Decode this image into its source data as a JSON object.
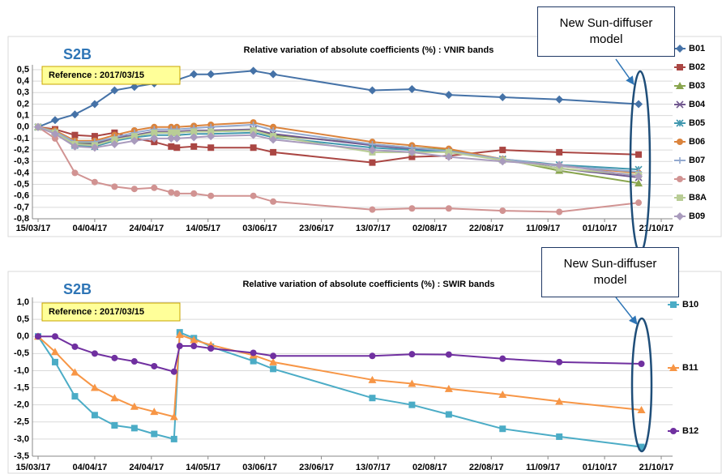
{
  "chart_data": [
    {
      "type": "line",
      "title": "Relative variation of absolute coefficients (%) : VNIR bands",
      "label": "S2B",
      "reference": "Reference : 2017/03/15",
      "callout": "New Sun-diffuser model",
      "legend": "right",
      "grid": true,
      "x": [
        "2017-03-15",
        "2017-03-21",
        "2017-03-28",
        "2017-04-04",
        "2017-04-11",
        "2017-04-18",
        "2017-04-25",
        "2017-05-01",
        "2017-05-03",
        "2017-05-09",
        "2017-05-15",
        "2017-05-30",
        "2017-06-06",
        "2017-07-11",
        "2017-07-25",
        "2017-08-07",
        "2017-08-26",
        "2017-09-15",
        "2017-10-13"
      ],
      "xlim": [
        "2017-03-13",
        "2017-10-25"
      ],
      "xticks": [
        {
          "value": "2017-03-15",
          "label": "15/03/17"
        },
        {
          "value": "2017-04-04",
          "label": "04/04/17"
        },
        {
          "value": "2017-04-24",
          "label": "24/04/17"
        },
        {
          "value": "2017-05-14",
          "label": "14/05/17"
        },
        {
          "value": "2017-06-03",
          "label": "03/06/17"
        },
        {
          "value": "2017-06-23",
          "label": "23/06/17"
        },
        {
          "value": "2017-07-13",
          "label": "13/07/17"
        },
        {
          "value": "2017-08-02",
          "label": "02/08/17"
        },
        {
          "value": "2017-08-22",
          "label": "22/08/17"
        },
        {
          "value": "2017-09-11",
          "label": "11/09/17"
        },
        {
          "value": "2017-10-01",
          "label": "01/10/17"
        },
        {
          "value": "2017-10-21",
          "label": "21/10/17"
        }
      ],
      "ylim": [
        -0.8,
        0.5
      ],
      "yticks": [
        {
          "value": 0.5,
          "label": "0,5"
        },
        {
          "value": 0.4,
          "label": "0,4"
        },
        {
          "value": 0.3,
          "label": "0,3"
        },
        {
          "value": 0.2,
          "label": "0,2"
        },
        {
          "value": 0.1,
          "label": "0,1"
        },
        {
          "value": 0,
          "label": "0,0"
        },
        {
          "value": -0.1,
          "label": "-0,1"
        },
        {
          "value": -0.2,
          "label": "-0,2"
        },
        {
          "value": -0.3,
          "label": "-0,3"
        },
        {
          "value": -0.4,
          "label": "-0,4"
        },
        {
          "value": -0.5,
          "label": "-0,5"
        },
        {
          "value": -0.6,
          "label": "-0,6"
        },
        {
          "value": -0.7,
          "label": "-0,7"
        },
        {
          "value": -0.8,
          "label": "-0,8"
        }
      ],
      "series": [
        {
          "name": "B01",
          "color": "#4572a7",
          "marker": "diamond",
          "values": [
            0,
            0.06,
            0.11,
            0.2,
            0.32,
            0.35,
            0.38,
            0.42,
            0.41,
            0.46,
            0.46,
            0.49,
            0.46,
            0.32,
            0.33,
            0.28,
            0.26,
            0.24,
            0.2
          ]
        },
        {
          "name": "B02",
          "color": "#aa4643",
          "marker": "square",
          "values": [
            0,
            -0.02,
            -0.07,
            -0.08,
            -0.05,
            -0.1,
            -0.13,
            -0.17,
            -0.18,
            -0.17,
            -0.18,
            -0.18,
            -0.22,
            -0.31,
            -0.26,
            -0.25,
            -0.2,
            -0.22,
            -0.24
          ]
        },
        {
          "name": "B03",
          "color": "#89a54e",
          "marker": "triangle",
          "values": [
            0,
            -0.05,
            -0.14,
            -0.14,
            -0.1,
            -0.07,
            -0.05,
            -0.05,
            -0.05,
            -0.04,
            -0.04,
            -0.03,
            -0.07,
            -0.15,
            -0.18,
            -0.2,
            -0.28,
            -0.38,
            -0.49
          ]
        },
        {
          "name": "B04",
          "color": "#71588f",
          "marker": "x",
          "values": [
            0,
            -0.05,
            -0.15,
            -0.15,
            -0.1,
            -0.07,
            -0.04,
            -0.04,
            -0.04,
            -0.03,
            -0.03,
            -0.02,
            -0.06,
            -0.16,
            -0.19,
            -0.21,
            -0.28,
            -0.36,
            -0.44
          ]
        },
        {
          "name": "B05",
          "color": "#4198af",
          "marker": "star",
          "values": [
            0,
            -0.05,
            -0.16,
            -0.17,
            -0.12,
            -0.09,
            -0.07,
            -0.07,
            -0.07,
            -0.06,
            -0.06,
            -0.05,
            -0.09,
            -0.18,
            -0.2,
            -0.22,
            -0.28,
            -0.33,
            -0.37
          ]
        },
        {
          "name": "B06",
          "color": "#db843d",
          "marker": "circle",
          "values": [
            0,
            -0.03,
            -0.12,
            -0.12,
            -0.07,
            -0.03,
            0,
            0,
            0,
            0.01,
            0.02,
            0.04,
            0,
            -0.13,
            -0.16,
            -0.19,
            -0.28,
            -0.34,
            -0.4
          ]
        },
        {
          "name": "B07",
          "color": "#93a9cf",
          "marker": "plus",
          "values": [
            0,
            -0.04,
            -0.13,
            -0.13,
            -0.09,
            -0.05,
            -0.02,
            -0.02,
            -0.02,
            -0.01,
            0,
            0.02,
            -0.03,
            -0.15,
            -0.18,
            -0.21,
            -0.28,
            -0.34,
            -0.39
          ]
        },
        {
          "name": "B08",
          "color": "#d19392",
          "marker": "circle",
          "values": [
            0,
            -0.1,
            -0.4,
            -0.48,
            -0.52,
            -0.54,
            -0.53,
            -0.57,
            -0.58,
            -0.58,
            -0.6,
            -0.6,
            -0.65,
            -0.72,
            -0.71,
            -0.71,
            -0.73,
            -0.74,
            -0.66
          ]
        },
        {
          "name": "B8A",
          "color": "#b9cd96",
          "marker": "square",
          "values": [
            0,
            -0.05,
            -0.15,
            -0.16,
            -0.11,
            -0.08,
            -0.05,
            -0.05,
            -0.05,
            -0.04,
            -0.04,
            -0.03,
            -0.08,
            -0.22,
            -0.22,
            -0.22,
            -0.29,
            -0.36,
            -0.42
          ]
        },
        {
          "name": "B09",
          "color": "#a99bbd",
          "marker": "diamond",
          "values": [
            0,
            -0.06,
            -0.17,
            -0.18,
            -0.15,
            -0.12,
            -0.1,
            -0.1,
            -0.1,
            -0.09,
            -0.08,
            -0.07,
            -0.11,
            -0.2,
            -0.22,
            -0.26,
            -0.3,
            -0.33,
            -0.43
          ]
        }
      ]
    },
    {
      "type": "line",
      "title": "Relative variation of absolute coefficients (%) : SWIR bands",
      "label": "S2B",
      "reference": "Reference : 2017/03/15",
      "callout": "New Sun-diffuser model",
      "legend": "right",
      "grid": true,
      "x": [
        "2017-03-15",
        "2017-03-21",
        "2017-03-28",
        "2017-04-04",
        "2017-04-11",
        "2017-04-18",
        "2017-04-25",
        "2017-05-02",
        "2017-05-04",
        "2017-05-09",
        "2017-05-15",
        "2017-05-30",
        "2017-06-06",
        "2017-07-11",
        "2017-07-25",
        "2017-08-07",
        "2017-08-26",
        "2017-09-15",
        "2017-10-14"
      ],
      "xlim": [
        "2017-03-13",
        "2017-10-25"
      ],
      "xticks": [
        {
          "value": "2017-03-15",
          "label": "15/03/17"
        },
        {
          "value": "2017-04-04",
          "label": "04/04/17"
        },
        {
          "value": "2017-04-24",
          "label": "24/04/17"
        },
        {
          "value": "2017-05-14",
          "label": "14/05/17"
        },
        {
          "value": "2017-06-03",
          "label": "03/06/17"
        },
        {
          "value": "2017-06-23",
          "label": "23/06/17"
        },
        {
          "value": "2017-07-13",
          "label": "13/07/17"
        },
        {
          "value": "2017-08-02",
          "label": "02/08/17"
        },
        {
          "value": "2017-08-22",
          "label": "22/08/17"
        },
        {
          "value": "2017-09-11",
          "label": "11/09/17"
        },
        {
          "value": "2017-10-01",
          "label": "01/10/17"
        },
        {
          "value": "2017-10-21",
          "label": "21/10/17"
        }
      ],
      "ylim": [
        -3.5,
        1
      ],
      "yticks": [
        {
          "value": 1,
          "label": "1,0"
        },
        {
          "value": 0.5,
          "label": "0,5"
        },
        {
          "value": 0,
          "label": "0,0"
        },
        {
          "value": -0.5,
          "label": "-0,5"
        },
        {
          "value": -1,
          "label": "-1,0"
        },
        {
          "value": -1.5,
          "label": "-1,5"
        },
        {
          "value": -2,
          "label": "-2,0"
        },
        {
          "value": -2.5,
          "label": "-2,5"
        },
        {
          "value": -3,
          "label": "-3,0"
        },
        {
          "value": -3.5,
          "label": "-3,5"
        }
      ],
      "series": [
        {
          "name": "B10",
          "color": "#4bacc6",
          "marker": "square",
          "values": [
            0,
            -0.75,
            -1.75,
            -2.3,
            -2.6,
            -2.68,
            -2.85,
            -3.0,
            0.12,
            -0.05,
            -0.3,
            -0.72,
            -0.95,
            -1.8,
            -2.0,
            -2.28,
            -2.7,
            -2.93,
            -3.23
          ]
        },
        {
          "name": "B11",
          "color": "#f79646",
          "marker": "triangle",
          "values": [
            0,
            -0.45,
            -1.05,
            -1.5,
            -1.8,
            -2.05,
            -2.2,
            -2.35,
            0.05,
            -0.1,
            -0.25,
            -0.55,
            -0.75,
            -1.27,
            -1.38,
            -1.53,
            -1.7,
            -1.9,
            -2.15
          ]
        },
        {
          "name": "B12",
          "color": "#7030a0",
          "marker": "circle",
          "values": [
            0,
            0,
            -0.3,
            -0.5,
            -0.63,
            -0.73,
            -0.87,
            -1.03,
            -0.28,
            -0.28,
            -0.35,
            -0.48,
            -0.57,
            -0.57,
            -0.52,
            -0.53,
            -0.65,
            -0.75,
            -0.8
          ]
        }
      ]
    }
  ]
}
